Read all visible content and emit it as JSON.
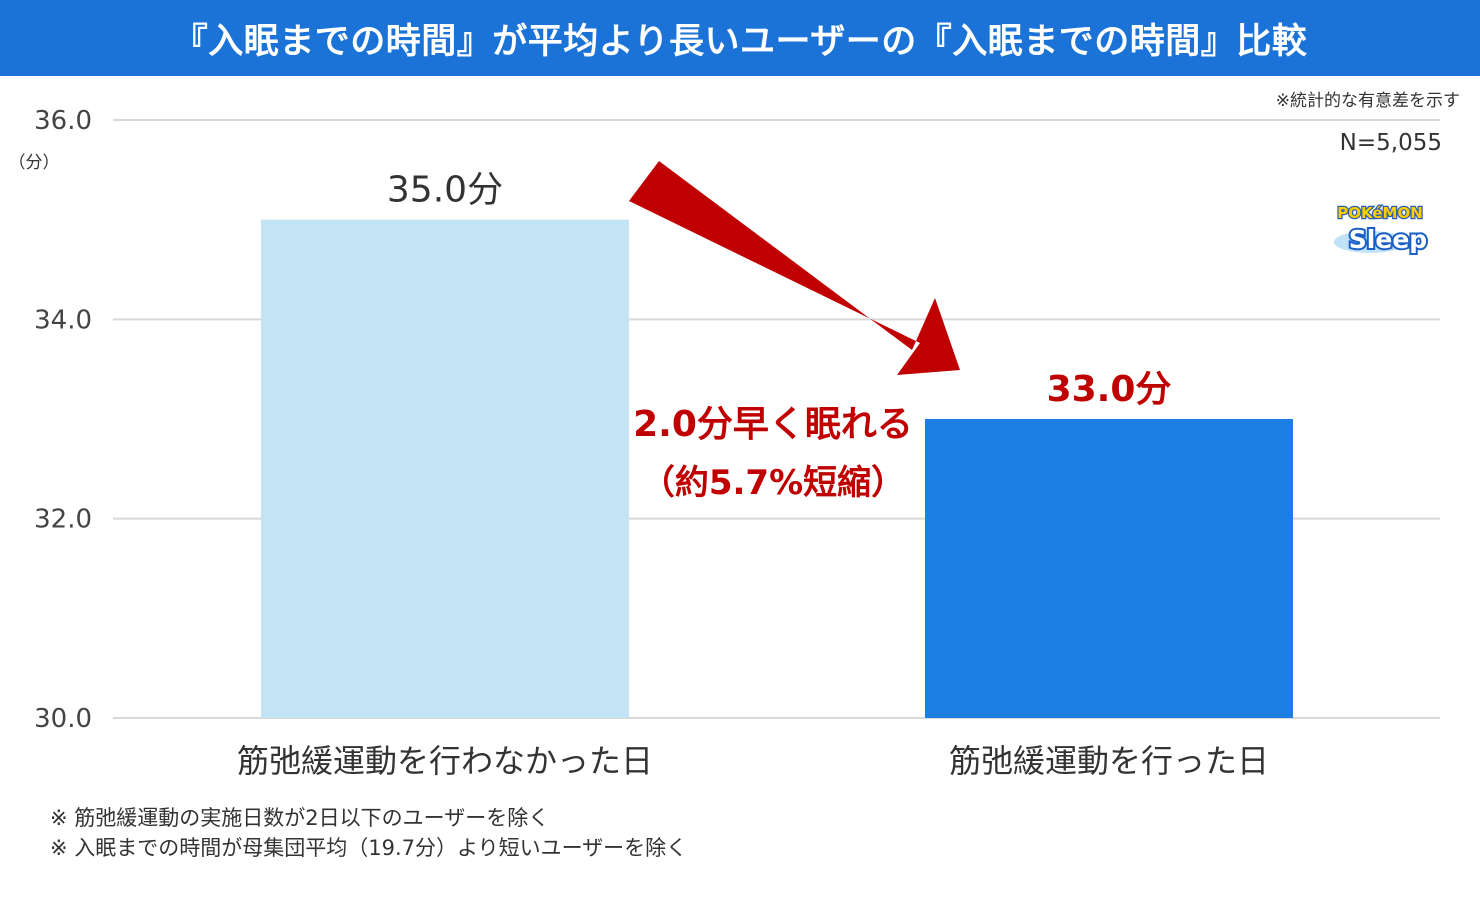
{
  "header": {
    "title": "『入眠までの時間』が平均より長いユーザーの『入眠までの時間』比較"
  },
  "notes": {
    "significance": "※統計的な有意差を示す",
    "sample_size": "N=5,055"
  },
  "logo": {
    "top_text": "POKéMON",
    "bottom_text": "Sleep"
  },
  "chart_data": {
    "type": "bar",
    "categories": [
      "筋弛緩運動を行わなかった日",
      "筋弛緩運動を行った日"
    ],
    "values": [
      35.0,
      33.0
    ],
    "data_labels": [
      "35.0分",
      "33.0分"
    ],
    "colors": [
      "#c2e4f5",
      "#1c7ee0"
    ],
    "label_colors": [
      "#333333",
      "#c00000"
    ],
    "ylim": [
      30.0,
      36.0
    ],
    "yticks": [
      "30.0",
      "32.0",
      "34.0",
      "36.0"
    ],
    "yunit": "（分）",
    "grid": true,
    "annotation": {
      "line1": "2.0分早く眠れる",
      "line2": "（約5.7%短縮）",
      "color": "#c00000"
    }
  },
  "footnotes": [
    "※ 筋弛緩運動の実施日数が2日以下のユーザーを除く",
    "※ 入眠までの時間が母集団平均（19.7分）より短いユーザーを除く"
  ]
}
